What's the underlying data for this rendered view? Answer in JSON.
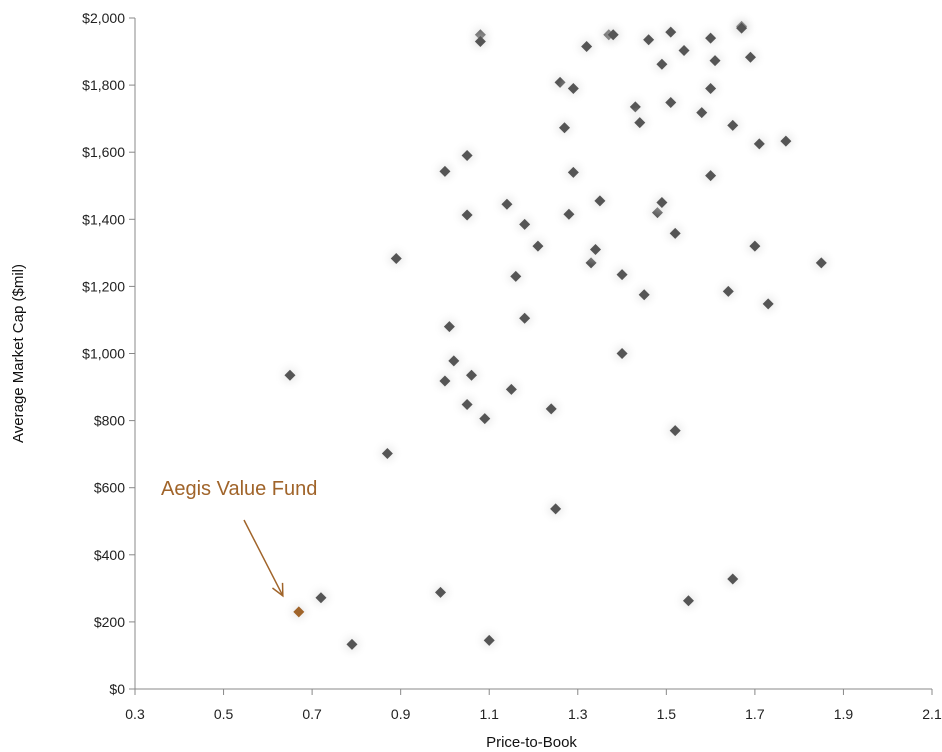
{
  "chart_data": {
    "type": "scatter",
    "title": "",
    "xlabel": "Price-to-Book",
    "ylabel": "Average Market Cap ($mil)",
    "xlim": [
      0.3,
      2.1
    ],
    "ylim": [
      0,
      2000
    ],
    "xticks": [
      "0.3",
      "0.5",
      "0.7",
      "0.9",
      "1.1",
      "1.3",
      "1.5",
      "1.7",
      "1.9",
      "2.1"
    ],
    "yticks": [
      "$0",
      "$200",
      "$400",
      "$600",
      "$800",
      "$1,000",
      "$1,200",
      "$1,400",
      "$1,600",
      "$1,800",
      "$2,000"
    ],
    "grid": false,
    "marker_color": "#555555",
    "highlight_color": "#a0642a",
    "annotation": {
      "text": "Aegis Value Fund",
      "x": 0.67,
      "y": 230
    },
    "series": [
      {
        "points": [
          [
            0.65,
            935
          ],
          [
            0.72,
            272
          ],
          [
            0.79,
            133
          ],
          [
            0.87,
            702
          ],
          [
            0.89,
            1283
          ],
          [
            0.99,
            288
          ],
          [
            1.0,
            918
          ],
          [
            1.0,
            1543
          ],
          [
            1.01,
            1080
          ],
          [
            1.02,
            978
          ],
          [
            1.05,
            848
          ],
          [
            1.05,
            1413
          ],
          [
            1.05,
            1590
          ],
          [
            1.06,
            935
          ],
          [
            1.08,
            1950
          ],
          [
            1.08,
            1930
          ],
          [
            1.09,
            806
          ],
          [
            1.1,
            145
          ],
          [
            1.14,
            1445
          ],
          [
            1.15,
            893
          ],
          [
            1.16,
            1230
          ],
          [
            1.18,
            1105
          ],
          [
            1.18,
            1385
          ],
          [
            1.21,
            1320
          ],
          [
            1.24,
            835
          ],
          [
            1.25,
            537
          ],
          [
            1.26,
            1808
          ],
          [
            1.27,
            1673
          ],
          [
            1.28,
            1415
          ],
          [
            1.29,
            1790
          ],
          [
            1.29,
            1540
          ],
          [
            1.32,
            1915
          ],
          [
            1.33,
            1270
          ],
          [
            1.34,
            1310
          ],
          [
            1.35,
            1455
          ],
          [
            1.37,
            1950
          ],
          [
            1.38,
            1950
          ],
          [
            1.4,
            1235
          ],
          [
            1.4,
            1000
          ],
          [
            1.43,
            1735
          ],
          [
            1.44,
            1688
          ],
          [
            1.45,
            1175
          ],
          [
            1.46,
            1935
          ],
          [
            1.48,
            1420
          ],
          [
            1.49,
            1862
          ],
          [
            1.49,
            1450
          ],
          [
            1.51,
            1958
          ],
          [
            1.51,
            1748
          ],
          [
            1.52,
            1358
          ],
          [
            1.52,
            770
          ],
          [
            1.54,
            1903
          ],
          [
            1.55,
            263
          ],
          [
            1.58,
            1718
          ],
          [
            1.6,
            1940
          ],
          [
            1.6,
            1790
          ],
          [
            1.6,
            1530
          ],
          [
            1.61,
            1873
          ],
          [
            1.64,
            1185
          ],
          [
            1.65,
            1680
          ],
          [
            1.65,
            328
          ],
          [
            1.67,
            1975
          ],
          [
            1.67,
            1970
          ],
          [
            1.69,
            1883
          ],
          [
            1.7,
            1320
          ],
          [
            1.71,
            1625
          ],
          [
            1.73,
            1148
          ],
          [
            1.77,
            1633
          ],
          [
            1.85,
            1270
          ]
        ]
      }
    ],
    "highlight_point": [
      0.67,
      230
    ]
  }
}
